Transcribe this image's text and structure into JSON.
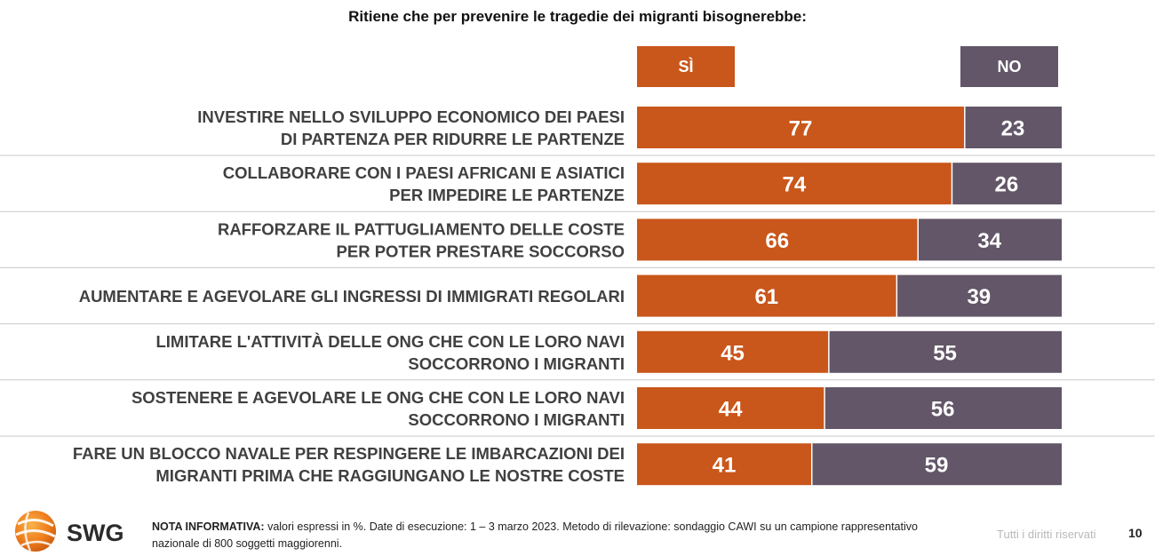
{
  "title": "Ritiene che per prevenire le tragedie dei migranti bisognerebbe:",
  "colors": {
    "yes": "#c9561a",
    "no": "#625668",
    "rule": "#c8c8c8",
    "label": "#404040"
  },
  "legend": {
    "yes": "SÌ",
    "no": "NO"
  },
  "chart_data": {
    "type": "bar",
    "stacked": true,
    "orientation": "horizontal",
    "unit": "%",
    "categories": [
      [
        "INVESTIRE NELLO SVILUPPO ECONOMICO DEI PAESI",
        "DI PARTENZA PER RIDURRE LE PARTENZE"
      ],
      [
        "COLLABORARE CON I PAESI AFRICANI E ASIATICI",
        "PER IMPEDIRE LE PARTENZE"
      ],
      [
        "RAFFORZARE IL PATTUGLIAMENTO DELLE COSTE",
        "PER POTER PRESTARE SOCCORSO"
      ],
      [
        "AUMENTARE E AGEVOLARE GLI INGRESSI DI IMMIGRATI REGOLARI"
      ],
      [
        "LIMITARE L'ATTIVITÀ DELLE ONG CHE CON LE LORO NAVI",
        "SOCCORRONO I MIGRANTI"
      ],
      [
        "SOSTENERE E AGEVOLARE LE ONG CHE CON LE LORO NAVI",
        "SOCCORRONO I MIGRANTI"
      ],
      [
        "FARE UN BLOCCO NAVALE PER RESPINGERE LE IMBARCAZIONI DEI",
        "MIGRANTI PRIMA CHE RAGGIUNGANO LE NOSTRE COSTE"
      ]
    ],
    "series": [
      {
        "name": "SÌ",
        "values": [
          77,
          74,
          66,
          61,
          45,
          44,
          41
        ]
      },
      {
        "name": "NO",
        "values": [
          23,
          26,
          34,
          39,
          55,
          56,
          59
        ]
      }
    ],
    "xlim": [
      0,
      100
    ]
  },
  "footer": {
    "logo_text": "SWG",
    "note_label": "NOTA INFORMATIVA:",
    "note_text": " valori espressi in %. Date di esecuzione: 1 – 3 marzo 2023. Metodo di rilevazione: sondaggio CAWI su un campione rappresentativo nazionale di 800 soggetti maggiorenni.",
    "rights": "Tutti i diritti riservati",
    "page": "10"
  }
}
